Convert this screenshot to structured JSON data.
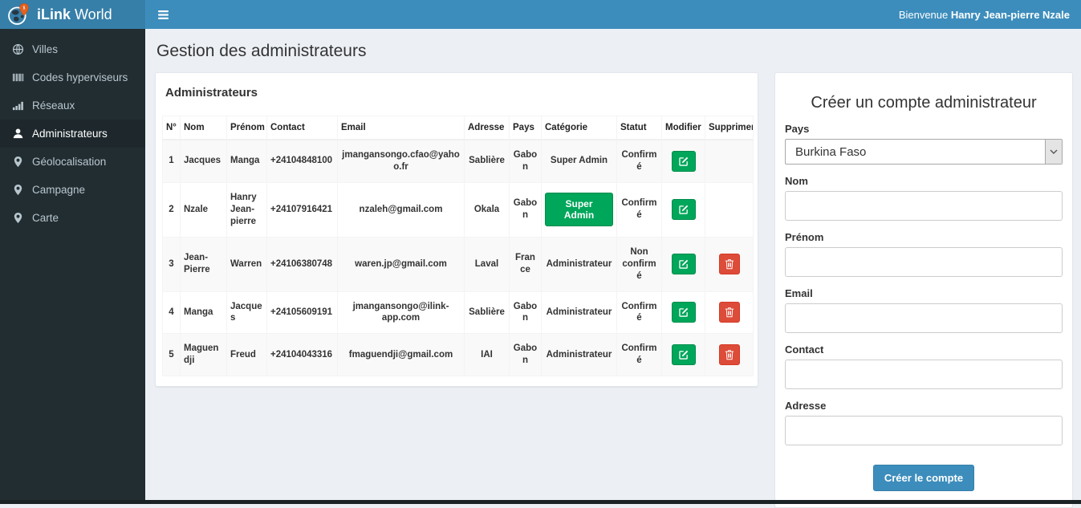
{
  "brand": {
    "bold": "iLink",
    "regular": " World"
  },
  "navbar": {
    "welcome_prefix": "Bienvenue ",
    "welcome_user": "Hanry Jean-pierre Nzale",
    "menu_icon": "hamburger-icon"
  },
  "page": {
    "title": "Gestion des administrateurs"
  },
  "sidebar": {
    "items": [
      {
        "id": "villes",
        "label": "Villes",
        "icon": "globe-icon",
        "active": false
      },
      {
        "id": "codes-hyperviseurs",
        "label": "Codes hyperviseurs",
        "icon": "barcode-icon",
        "active": false
      },
      {
        "id": "reseaux",
        "label": "Réseaux",
        "icon": "signal-bars-icon",
        "active": false
      },
      {
        "id": "administrateurs",
        "label": "Administrateurs",
        "icon": "user-icon",
        "active": true
      },
      {
        "id": "geolocalisation",
        "label": "Géolocalisation",
        "icon": "map-marker-icon",
        "active": false
      },
      {
        "id": "campagne",
        "label": "Campagne",
        "icon": "map-marker-icon",
        "active": false
      },
      {
        "id": "carte",
        "label": "Carte",
        "icon": "map-marker-icon",
        "active": false
      }
    ]
  },
  "admins_panel": {
    "title": "Administrateurs",
    "table": {
      "columns": [
        "N°",
        "Nom",
        "Prénom",
        "Contact",
        "Email",
        "Adresse",
        "Pays",
        "Catégorie",
        "Statut",
        "Modifier",
        "Supprimer"
      ],
      "edit_icon": "edit-pencil-icon",
      "delete_icon": "trash-icon",
      "rows": [
        {
          "num": "1",
          "nom": "Jacques",
          "prenom": "Manga",
          "contact": "+24104848100",
          "email": "jmangansongo.cfao@yahoo.fr",
          "adresse": "Sablière",
          "pays": "Gabon",
          "categorie": "Super Admin",
          "categorie_as_button": false,
          "statut": "Confirmé",
          "can_delete": false
        },
        {
          "num": "2",
          "nom": "Nzale",
          "prenom": "Hanry Jean-pierre",
          "contact": "+24107916421",
          "email": "nzaleh@gmail.com",
          "adresse": "Okala",
          "pays": "Gabon",
          "categorie": "Super Admin",
          "categorie_as_button": true,
          "statut": "Confirmé",
          "can_delete": false
        },
        {
          "num": "3",
          "nom": "Jean-Pierre",
          "prenom": "Warren",
          "contact": "+24106380748",
          "email": "waren.jp@gmail.com",
          "adresse": "Laval",
          "pays": "France",
          "categorie": "Administrateur",
          "categorie_as_button": false,
          "statut": "Non confirmé",
          "can_delete": true
        },
        {
          "num": "4",
          "nom": "Manga",
          "prenom": "Jacques",
          "contact": "+24105609191",
          "email": "jmangansongo@ilink-app.com",
          "adresse": "Sablière",
          "pays": "Gabon",
          "categorie": "Administrateur",
          "categorie_as_button": false,
          "statut": "Confirmé",
          "can_delete": true
        },
        {
          "num": "5",
          "nom": "Maguendji",
          "prenom": "Freud",
          "contact": "+24104043316",
          "email": "fmaguendji@gmail.com",
          "adresse": "IAI",
          "pays": "Gabon",
          "categorie": "Administrateur",
          "categorie_as_button": false,
          "statut": "Confirmé",
          "can_delete": true
        }
      ]
    }
  },
  "form_panel": {
    "title": "Créer un compte administrateur",
    "fields": [
      {
        "key": "pays",
        "label": "Pays",
        "control": "select",
        "value": "Burkina Faso"
      },
      {
        "key": "nom",
        "label": "Nom",
        "control": "input",
        "value": ""
      },
      {
        "key": "prenom",
        "label": "Prénom",
        "control": "input",
        "value": ""
      },
      {
        "key": "email",
        "label": "Email",
        "control": "input",
        "value": ""
      },
      {
        "key": "contact",
        "label": "Contact",
        "control": "input",
        "value": ""
      },
      {
        "key": "adresse",
        "label": "Adresse",
        "control": "input",
        "value": ""
      }
    ],
    "submit_label": "Créer le compte"
  },
  "colors": {
    "navbar": "#3c8dbc",
    "logo_bg": "#367fa9",
    "sidebar_bg": "#222d32",
    "sidebar_active_bg": "#1e282c",
    "body_bg": "#ecf0f5",
    "success": "#00a65a",
    "danger": "#dd4b39",
    "primary": "#3c8dbc"
  }
}
